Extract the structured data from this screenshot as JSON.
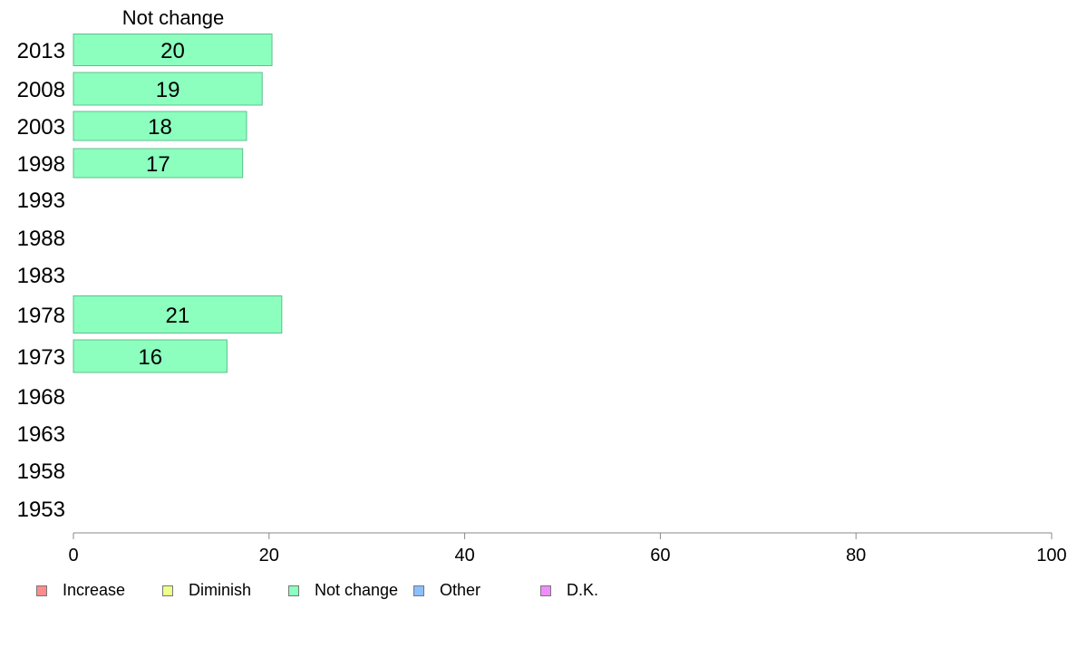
{
  "chart_data": {
    "type": "bar",
    "orientation": "horizontal",
    "series_title": "Not change",
    "categories": [
      "2013",
      "2008",
      "2003",
      "1998",
      "1993",
      "1988",
      "1983",
      "1978",
      "1973",
      "1968",
      "1963",
      "1958",
      "1953"
    ],
    "values": [
      20.3,
      19.3,
      17.7,
      17.3,
      null,
      null,
      null,
      21.3,
      15.7,
      null,
      null,
      null,
      null
    ],
    "data_labels": [
      "20",
      "19",
      "18",
      "17",
      "",
      "",
      "",
      "21",
      "16",
      "",
      "",
      "",
      ""
    ],
    "xlim": [
      0,
      100
    ],
    "xticks": [
      0,
      20,
      40,
      60,
      80,
      100
    ],
    "bar_color": "#8cffbf",
    "bar_border_color": "#5fbf8c",
    "legend": [
      {
        "label": "Increase",
        "color": "#ff8c8c"
      },
      {
        "label": "Diminish",
        "color": "#efff8c"
      },
      {
        "label": "Not change",
        "color": "#8cffbf"
      },
      {
        "label": "Other",
        "color": "#8cbfff"
      },
      {
        "label": "D.K.",
        "color": "#ef8cff"
      }
    ],
    "legend_position": "bottom-left"
  }
}
